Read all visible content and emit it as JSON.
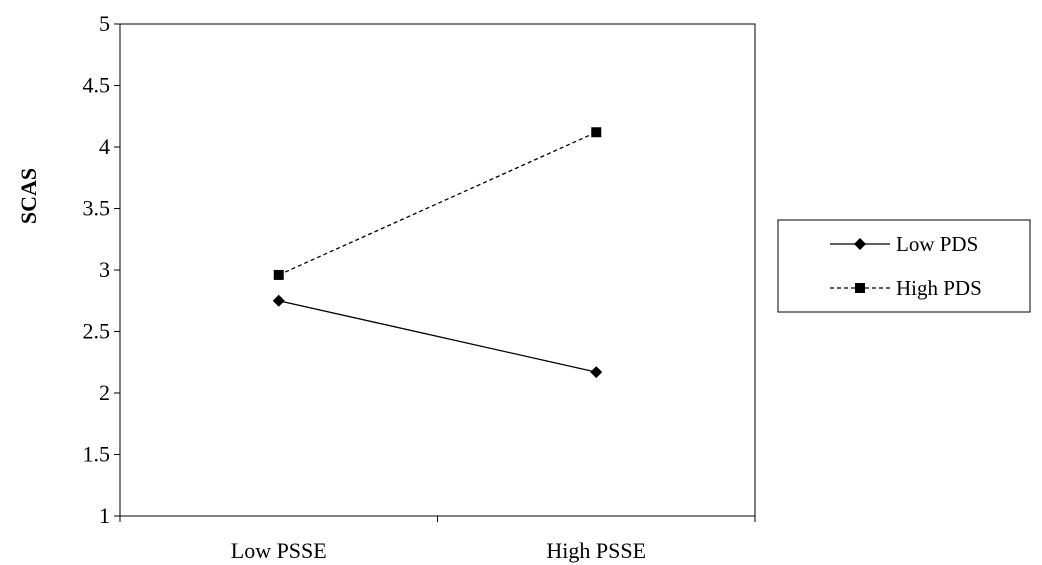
{
  "chart_data": {
    "type": "line",
    "title": "",
    "xlabel": "",
    "ylabel": "SCAS",
    "categories": [
      "Low PSSE",
      "High PSSE"
    ],
    "ylim": [
      1,
      5
    ],
    "yticks": [
      "1",
      "1.5",
      "2",
      "2.5",
      "3",
      "3.5",
      "4",
      "4.5",
      "5"
    ],
    "grid": false,
    "legend_position": "right",
    "series": [
      {
        "name": "Low PDS",
        "values": [
          2.75,
          2.17
        ],
        "marker": "diamond",
        "line_style": "solid",
        "color": "#000000"
      },
      {
        "name": "High PDS",
        "values": [
          2.96,
          4.12
        ],
        "marker": "square",
        "line_style": "dashed",
        "color": "#000000"
      }
    ]
  }
}
